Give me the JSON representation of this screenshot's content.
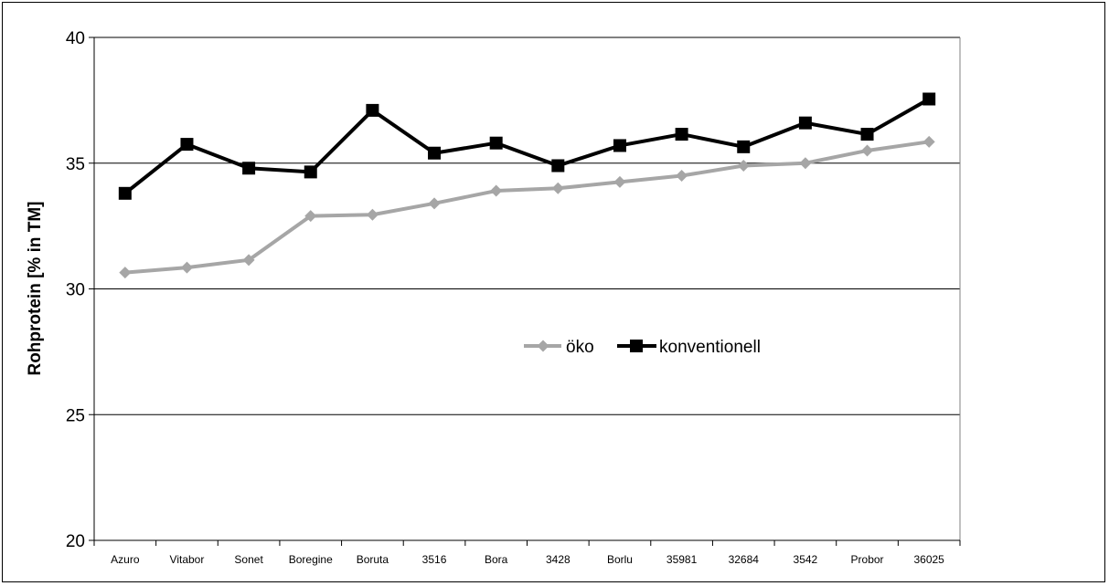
{
  "chart_data": {
    "type": "line",
    "title": "",
    "xlabel": "",
    "ylabel": "Rohprotein [% in TM]",
    "ylim": [
      20,
      40
    ],
    "yticks": [
      20,
      25,
      30,
      35,
      40
    ],
    "grid": true,
    "legend_position": "center-right",
    "categories": [
      "Azuro",
      "Vitabor",
      "Sonet",
      "Boregine",
      "Boruta",
      "3516",
      "Bora",
      "3428",
      "Borlu",
      "35981",
      "32684",
      "3542",
      "Probor",
      "36025"
    ],
    "series": [
      {
        "name": "öko",
        "color": "#a6a6a6",
        "marker": "diamond",
        "values": [
          30.65,
          30.85,
          31.15,
          32.9,
          32.95,
          33.4,
          33.9,
          34.0,
          34.25,
          34.5,
          34.9,
          35.0,
          35.5,
          35.85
        ]
      },
      {
        "name": "konventionell",
        "color": "#000000",
        "marker": "square",
        "values": [
          33.8,
          35.75,
          34.8,
          34.65,
          37.1,
          35.4,
          35.8,
          34.9,
          35.7,
          36.15,
          35.65,
          36.6,
          36.15,
          37.55
        ]
      }
    ]
  }
}
